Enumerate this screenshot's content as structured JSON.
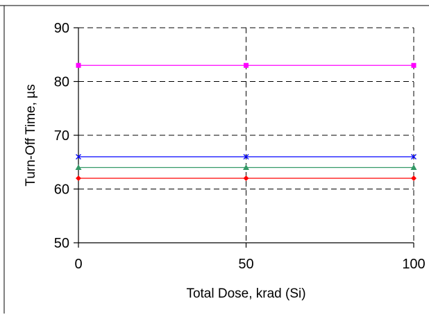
{
  "chart_data": {
    "type": "line",
    "xlabel": "Total Dose, krad (Si)",
    "ylabel": "Turn-Off Time, µs",
    "xlim": [
      0,
      100
    ],
    "ylim": [
      50,
      90
    ],
    "x_ticks": [
      0,
      50,
      100
    ],
    "y_ticks": [
      50,
      60,
      70,
      80,
      90
    ],
    "grid": "dashed",
    "legend": "none",
    "x": [
      0,
      50,
      100
    ],
    "series": [
      {
        "values": [
          83,
          83,
          83
        ],
        "color": "#ff00ff",
        "marker": "square"
      },
      {
        "values": [
          66,
          66,
          66
        ],
        "color": "#0000ff",
        "marker": "x"
      },
      {
        "values": [
          64,
          64,
          64
        ],
        "color": "#339966",
        "marker": "triangle"
      },
      {
        "values": [
          62,
          62,
          62
        ],
        "color": "#ff0000",
        "marker": "diamond"
      }
    ]
  }
}
